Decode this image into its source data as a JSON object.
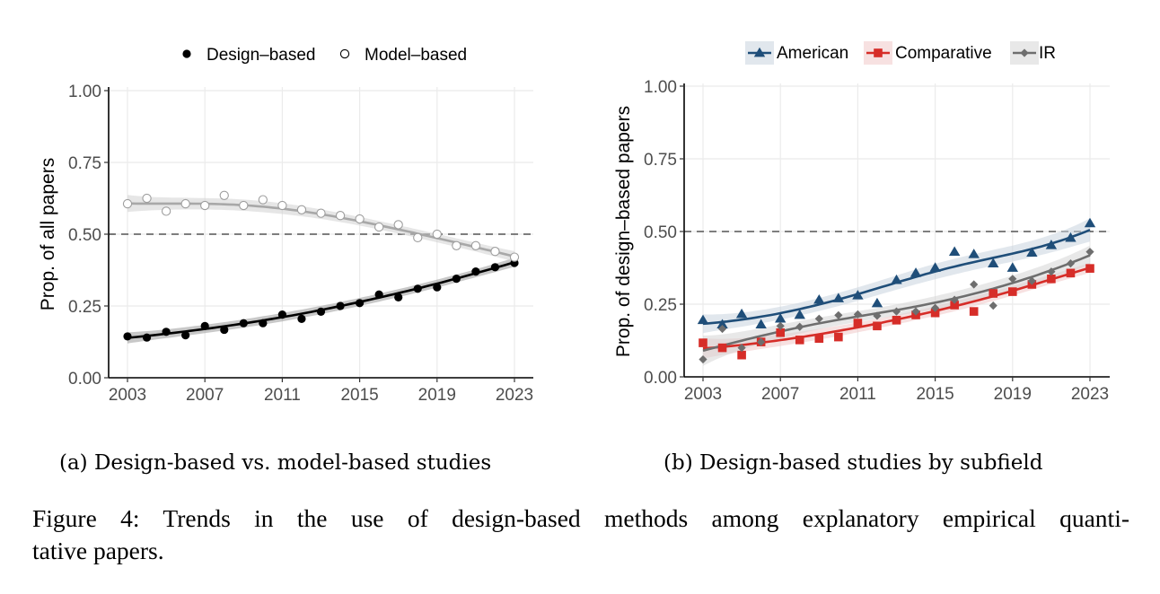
{
  "figure": {
    "caption": "Figure 4: Trends in the use of design-based methods among explanatory empirical quantitative papers.",
    "caption_line1": "Figure 4: Trends in the use of design-based methods among explanatory empirical quanti-",
    "caption_line2": "tative papers."
  },
  "chart_data": [
    {
      "id": "a",
      "type": "scatter",
      "subcaption": "(a) Design-based vs. model-based studies",
      "title": "",
      "xlabel": "",
      "ylabel": "Prop. of all papers",
      "xlim": [
        2003,
        2023
      ],
      "ylim": [
        0,
        1
      ],
      "xticks": [
        "2003",
        "2007",
        "2011",
        "2015",
        "2019",
        "2023"
      ],
      "yticks": [
        "0.00",
        "0.25",
        "0.50",
        "0.75",
        "1.00"
      ],
      "reference_line": 0.5,
      "grid": true,
      "legend_position": "top",
      "smoothed_trend": true,
      "x": [
        2003,
        2004,
        2005,
        2006,
        2007,
        2008,
        2009,
        2010,
        2011,
        2012,
        2013,
        2014,
        2015,
        2016,
        2017,
        2018,
        2019,
        2020,
        2021,
        2022,
        2023
      ],
      "series": [
        {
          "name": "Design–based",
          "marker": "filled-circle",
          "color": "#000000",
          "values": [
            0.144,
            0.14,
            0.16,
            0.148,
            0.18,
            0.167,
            0.19,
            0.19,
            0.22,
            0.205,
            0.23,
            0.25,
            0.26,
            0.29,
            0.28,
            0.31,
            0.315,
            0.345,
            0.37,
            0.385,
            0.4
          ]
        },
        {
          "name": "Model–based",
          "marker": "open-circle",
          "color": "#9e9e9e",
          "values": [
            0.606,
            0.625,
            0.58,
            0.606,
            0.6,
            0.635,
            0.6,
            0.62,
            0.6,
            0.585,
            0.573,
            0.565,
            0.553,
            0.525,
            0.533,
            0.488,
            0.5,
            0.46,
            0.46,
            0.44,
            0.42
          ]
        }
      ]
    },
    {
      "id": "b",
      "type": "scatter",
      "subcaption": "(b) Design-based studies by subfield",
      "title": "",
      "xlabel": "",
      "ylabel": "Prop. of design–based papers",
      "xlim": [
        2003,
        2023
      ],
      "ylim": [
        0,
        1
      ],
      "xticks": [
        "2003",
        "2007",
        "2011",
        "2015",
        "2019",
        "2023"
      ],
      "yticks": [
        "0.00",
        "0.25",
        "0.50",
        "0.75",
        "1.00"
      ],
      "reference_line": 0.5,
      "grid": true,
      "legend_position": "top",
      "smoothed_trend": true,
      "x": [
        2003,
        2004,
        2005,
        2006,
        2007,
        2008,
        2009,
        2010,
        2011,
        2012,
        2013,
        2014,
        2015,
        2016,
        2017,
        2018,
        2019,
        2020,
        2021,
        2022,
        2023
      ],
      "series": [
        {
          "name": "American",
          "marker": "triangle",
          "color": "#1f4e79",
          "values": [
            0.195,
            0.18,
            0.216,
            0.18,
            0.2,
            0.213,
            0.265,
            0.27,
            0.28,
            0.253,
            0.333,
            0.357,
            0.375,
            0.43,
            0.422,
            0.39,
            0.375,
            0.427,
            0.453,
            0.478,
            0.528
          ]
        },
        {
          "name": "Comparative",
          "marker": "square",
          "color": "#d62d28",
          "values": [
            0.117,
            0.1,
            0.075,
            0.12,
            0.152,
            0.127,
            0.132,
            0.137,
            0.185,
            0.175,
            0.195,
            0.213,
            0.22,
            0.247,
            0.225,
            0.287,
            0.293,
            0.318,
            0.337,
            0.357,
            0.373
          ]
        },
        {
          "name": "IR",
          "marker": "diamond",
          "color": "#6e6e6e",
          "values": [
            0.06,
            0.165,
            0.1,
            0.12,
            0.175,
            0.172,
            0.2,
            0.212,
            0.215,
            0.21,
            0.225,
            0.225,
            0.237,
            0.265,
            0.318,
            0.245,
            0.337,
            0.33,
            0.362,
            0.39,
            0.43
          ]
        }
      ]
    }
  ]
}
